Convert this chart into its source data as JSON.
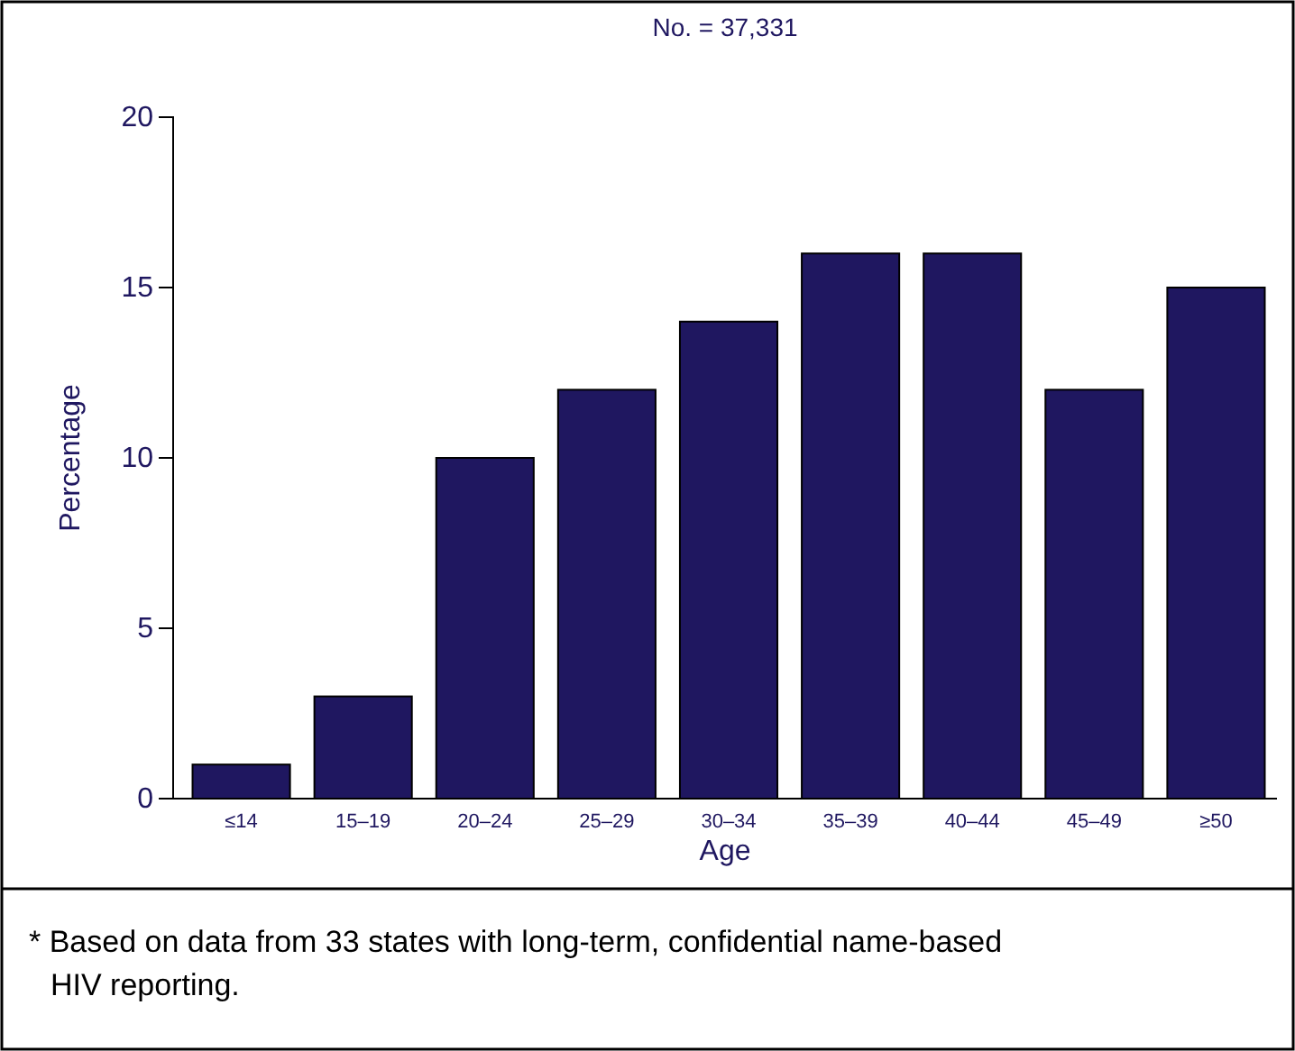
{
  "chart_data": {
    "type": "bar",
    "title": "No. = 37,331",
    "xlabel": "Age",
    "ylabel": "Percentage",
    "categories": [
      "≤14",
      "15–19",
      "20–24",
      "25–29",
      "30–34",
      "35–39",
      "40–44",
      "45–49",
      "≥50"
    ],
    "values": [
      1,
      3,
      10,
      12,
      14,
      16,
      16,
      12,
      15
    ],
    "color": "#1f1760",
    "ylim": [
      0,
      20
    ],
    "yticks": [
      0,
      5,
      10,
      15,
      20
    ],
    "grid": false,
    "annotations": [
      "* Based on data from 33 states with long-term, confidential name-based HIV reporting."
    ]
  }
}
